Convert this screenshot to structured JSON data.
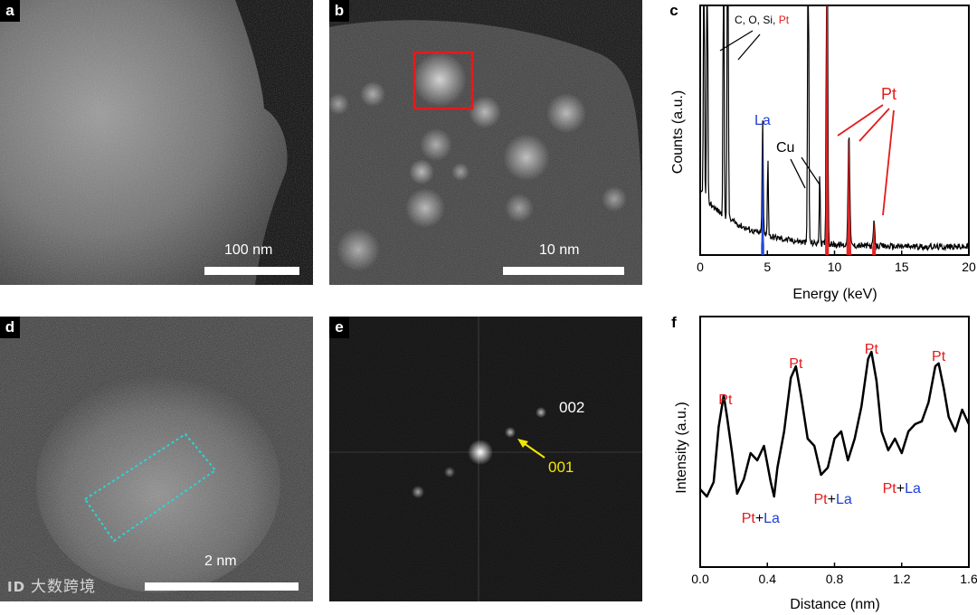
{
  "panels": {
    "a": {
      "letter": "a",
      "scale_label": "100 nm"
    },
    "b": {
      "letter": "b",
      "scale_label": "10 nm"
    },
    "c": {
      "letter": "c"
    },
    "d": {
      "letter": "d",
      "scale_label": "2 nm"
    },
    "e": {
      "letter": "e",
      "spot_002": "002",
      "spot_001": "001"
    },
    "f": {
      "letter": "f"
    }
  },
  "watermark": {
    "logo": "ID",
    "text": "大数跨境"
  },
  "colors": {
    "pt_red": "#e41a1c",
    "la_blue": "#1f3fd8",
    "cyan_box": "#2ad4d4",
    "yellow_arrow": "#f2e600"
  },
  "chart_data": [
    {
      "type": "line",
      "panel": "c",
      "xlabel": "Energy (keV)",
      "ylabel": "Counts (a.u.)",
      "xlim": [
        0,
        20
      ],
      "xticks": [
        0,
        5,
        10,
        15,
        20
      ],
      "annotations": {
        "elements_prefix": "C, O, Si, ",
        "elements_pt": "Pt",
        "la": "La",
        "cu": "Cu",
        "pt": "Pt"
      },
      "peaks": [
        {
          "label": "La",
          "energy": 4.65,
          "color": "#1f3fd8"
        },
        {
          "label": "Cu",
          "energy": 8.04,
          "color": "#000000"
        },
        {
          "label": "Cu",
          "energy": 8.9,
          "color": "#000000"
        },
        {
          "label": "Pt",
          "energy": 9.44,
          "color": "#e41a1c"
        },
        {
          "label": "Pt",
          "energy": 11.07,
          "color": "#e41a1c"
        },
        {
          "label": "Pt",
          "energy": 12.94,
          "color": "#e41a1c"
        }
      ]
    },
    {
      "type": "line",
      "panel": "f",
      "xlabel": "Distance (nm)",
      "ylabel": "Intensity (a.u.)",
      "xlim": [
        0.0,
        1.6
      ],
      "xticks": [
        "0.0",
        "0.4",
        "0.8",
        "1.2",
        "1.6"
      ],
      "pt_peaks": [
        {
          "label": "Pt",
          "x": 0.15
        },
        {
          "label": "Pt",
          "x": 0.57
        },
        {
          "label": "Pt",
          "x": 1.02
        },
        {
          "label": "Pt",
          "x": 1.42
        }
      ],
      "ptla_labels": [
        {
          "pt": "Pt",
          "plus": "+",
          "la": "La",
          "x": 0.36
        },
        {
          "pt": "Pt",
          "plus": "+",
          "la": "La",
          "x": 0.79
        },
        {
          "pt": "Pt",
          "plus": "+",
          "la": "La",
          "x": 1.2
        }
      ],
      "series": [
        {
          "x": [
            0.0,
            0.04,
            0.08,
            0.11,
            0.14,
            0.16,
            0.19,
            0.22,
            0.26,
            0.3,
            0.34,
            0.38,
            0.42,
            0.44,
            0.46,
            0.5,
            0.54,
            0.57,
            0.6,
            0.64,
            0.68,
            0.72,
            0.76,
            0.8,
            0.84,
            0.88,
            0.92,
            0.96,
            1.0,
            1.02,
            1.05,
            1.08,
            1.12,
            1.16,
            1.2,
            1.24,
            1.28,
            1.32,
            1.36,
            1.4,
            1.42,
            1.45,
            1.48,
            1.52,
            1.56,
            1.6
          ],
          "y": [
            0.15,
            0.1,
            0.2,
            0.58,
            0.8,
            0.65,
            0.4,
            0.12,
            0.22,
            0.4,
            0.35,
            0.45,
            0.2,
            0.1,
            0.3,
            0.55,
            0.92,
            1.0,
            0.8,
            0.5,
            0.45,
            0.25,
            0.3,
            0.5,
            0.55,
            0.35,
            0.5,
            0.72,
            1.05,
            1.1,
            0.9,
            0.55,
            0.42,
            0.5,
            0.4,
            0.55,
            0.6,
            0.62,
            0.75,
            1.0,
            1.02,
            0.85,
            0.65,
            0.55,
            0.7,
            0.6
          ]
        }
      ]
    }
  ]
}
